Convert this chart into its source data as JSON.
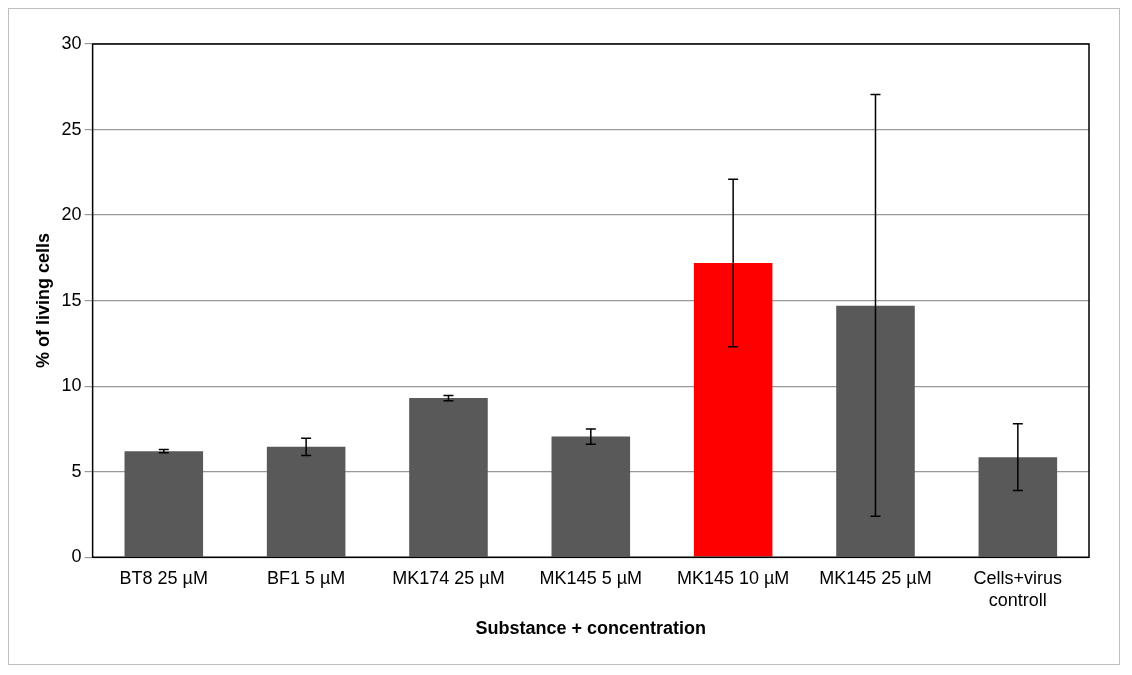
{
  "chart_data": {
    "type": "bar",
    "categories": [
      "BT8 25 µM",
      "BF1 5 µM",
      "MK174 25 µM",
      "MK145 5 µM",
      "MK145 10 µM",
      "MK145 25 µM",
      "Cells+virus controll"
    ],
    "values": [
      6.2,
      6.45,
      9.3,
      7.05,
      17.2,
      14.7,
      5.85
    ],
    "colors": [
      "#595959",
      "#595959",
      "#595959",
      "#595959",
      "#ff0000",
      "#595959",
      "#595959"
    ],
    "errors": [
      0.1,
      0.5,
      0.15,
      0.45,
      [
        12.3,
        22.1
      ],
      [
        2.4,
        27.05
      ],
      [
        3.9,
        7.8
      ]
    ],
    "xlabel": "Substance + concentration",
    "ylabel": "% of living cells",
    "ylim": [
      0,
      30
    ],
    "yticks": [
      0,
      5,
      10,
      15,
      20,
      25,
      30
    ],
    "grid": "y"
  }
}
